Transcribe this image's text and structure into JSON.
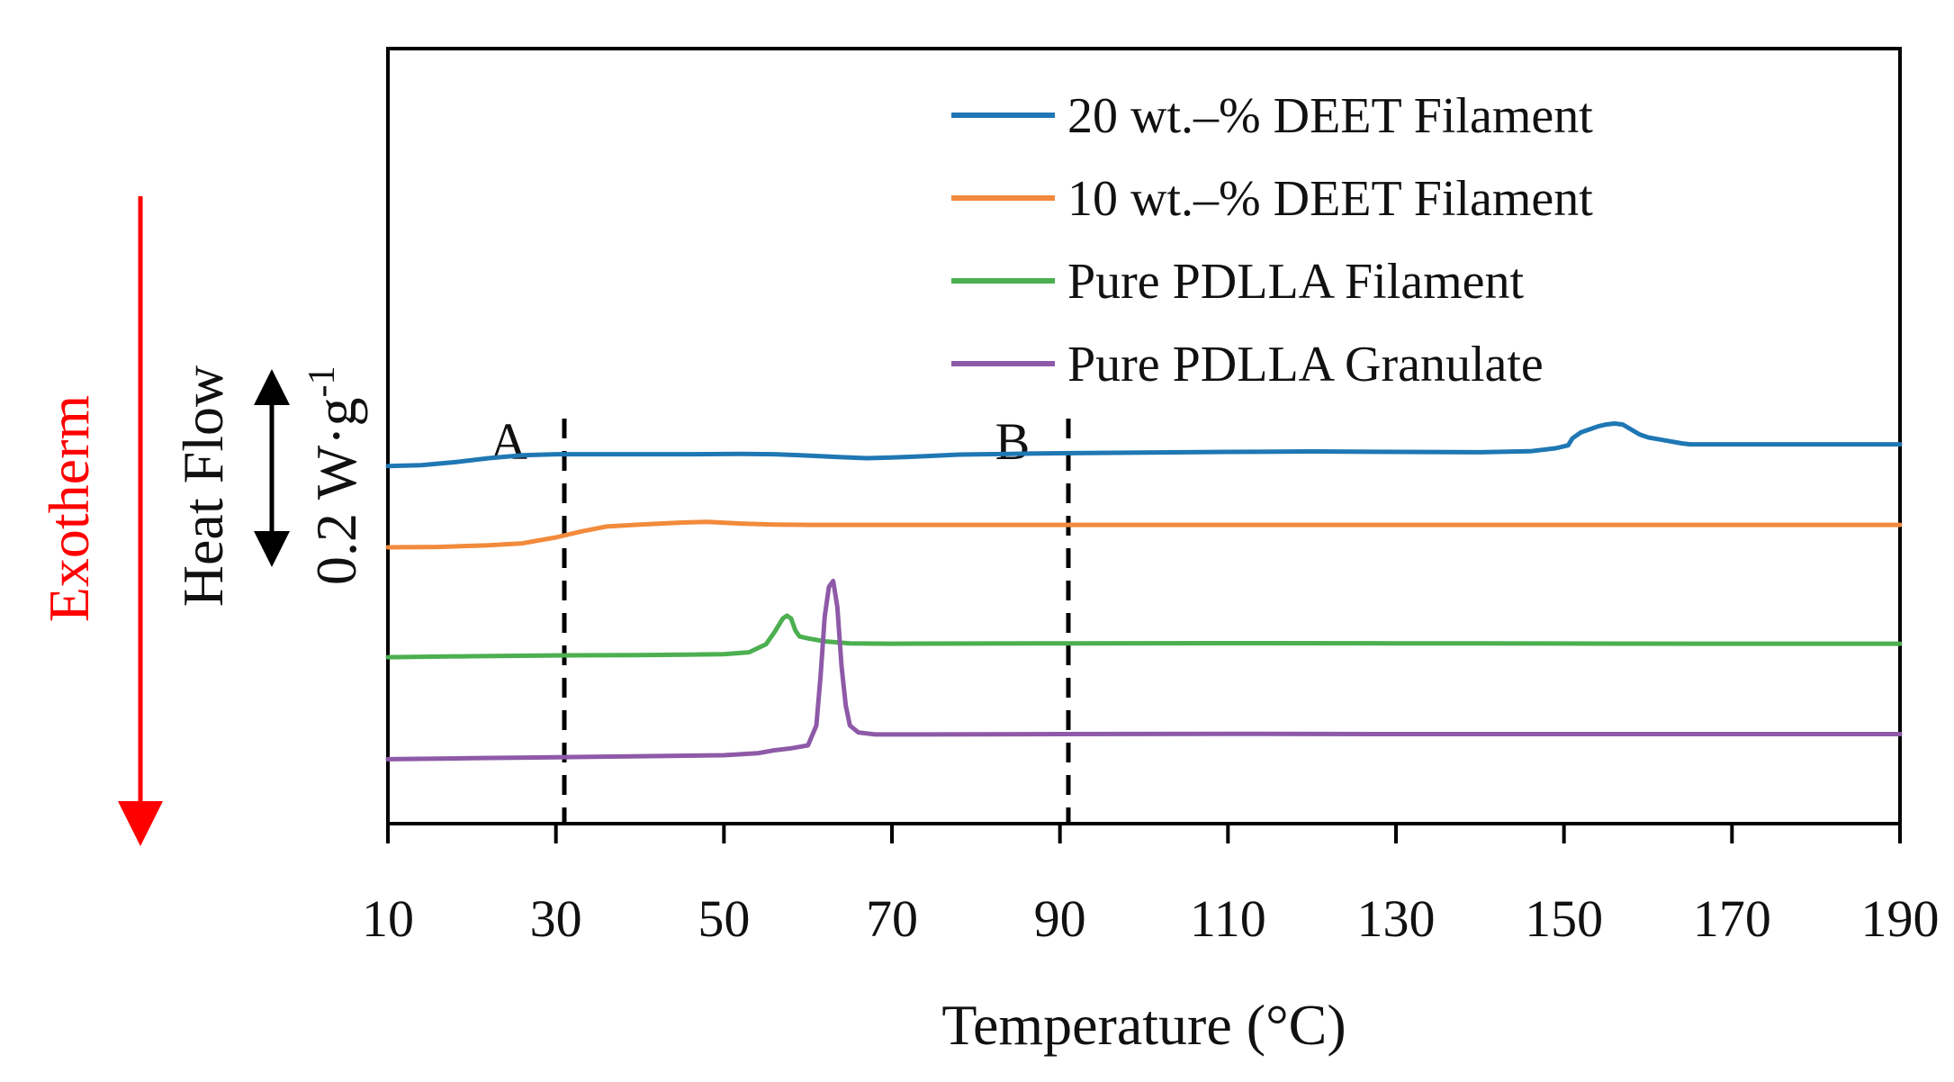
{
  "chart_data": {
    "type": "line",
    "xlabel": "Temperature (°C)",
    "ylabel": "Heat Flow",
    "scale_label": "0.2 W·g",
    "scale_label_sup": "-1",
    "exotherm_label": "Exotherm",
    "xlim": [
      10,
      190
    ],
    "x_ticks": [
      "10",
      "30",
      "50",
      "70",
      "90",
      "110",
      "130",
      "150",
      "170",
      "190"
    ],
    "y_ticks": [],
    "grid": false,
    "legend_position": "top-right",
    "annotations": [
      {
        "label": "A",
        "x": 31
      },
      {
        "label": "B",
        "x": 91
      }
    ],
    "series": [
      {
        "name": "20 wt.–% DEET Filament",
        "color": "#1f77b4",
        "x": [
          10,
          14,
          18,
          22,
          26,
          30,
          34,
          40,
          46,
          52,
          56,
          60,
          64,
          67,
          70,
          74,
          78,
          84,
          90,
          100,
          110,
          120,
          130,
          140,
          146,
          149,
          150.5,
          151,
          152,
          153,
          154,
          155,
          156,
          157,
          158,
          159,
          160,
          162,
          164,
          165,
          170,
          180,
          190
        ],
        "y": [
          0.26,
          0.265,
          0.28,
          0.3,
          0.315,
          0.32,
          0.32,
          0.32,
          0.32,
          0.322,
          0.32,
          0.313,
          0.305,
          0.3,
          0.303,
          0.31,
          0.318,
          0.322,
          0.325,
          0.328,
          0.332,
          0.334,
          0.332,
          0.33,
          0.335,
          0.35,
          0.365,
          0.4,
          0.43,
          0.445,
          0.46,
          0.47,
          0.475,
          0.47,
          0.445,
          0.42,
          0.405,
          0.39,
          0.375,
          0.37,
          0.37,
          0.37,
          0.37
        ],
        "style": "solid"
      },
      {
        "name": "10 wt.–% DEET Filament",
        "color": "#f28a3c",
        "x": [
          10,
          16,
          22,
          26,
          30,
          33,
          36,
          40,
          45,
          48,
          52,
          56,
          60,
          70,
          90,
          110,
          130,
          150,
          170,
          190
        ],
        "y": [
          -0.15,
          -0.148,
          -0.14,
          -0.13,
          -0.1,
          -0.07,
          -0.045,
          -0.035,
          -0.025,
          -0.022,
          -0.03,
          -0.035,
          -0.037,
          -0.037,
          -0.037,
          -0.037,
          -0.037,
          -0.037,
          -0.037,
          -0.037
        ],
        "style": "solid"
      },
      {
        "name": "Pure PDLLA Filament",
        "color": "#4caf50",
        "x": [
          10,
          20,
          30,
          40,
          50,
          53,
          55,
          56,
          57,
          57.5,
          58,
          58.5,
          59,
          60,
          62,
          65,
          70,
          90,
          110,
          130,
          150,
          170,
          190
        ],
        "y": [
          -0.705,
          -0.7,
          -0.696,
          -0.694,
          -0.69,
          -0.68,
          -0.64,
          -0.58,
          -0.51,
          -0.495,
          -0.51,
          -0.57,
          -0.6,
          -0.61,
          -0.625,
          -0.635,
          -0.637,
          -0.635,
          -0.634,
          -0.635,
          -0.636,
          -0.637,
          -0.637
        ],
        "style": "solid"
      },
      {
        "name": "Pure PDLLA Granulate",
        "color": "#8e5aa8",
        "x": [
          10,
          20,
          30,
          40,
          50,
          54,
          56,
          58,
          60,
          61,
          61.5,
          62,
          62.5,
          63,
          63.5,
          64,
          64.5,
          65,
          66,
          68,
          70,
          80,
          90,
          110,
          130,
          150,
          170,
          190
        ],
        "y": [
          -1.22,
          -1.215,
          -1.21,
          -1.205,
          -1.2,
          -1.19,
          -1.175,
          -1.165,
          -1.15,
          -1.05,
          -0.8,
          -0.5,
          -0.35,
          -0.32,
          -0.45,
          -0.75,
          -0.95,
          -1.05,
          -1.085,
          -1.095,
          -1.095,
          -1.094,
          -1.093,
          -1.092,
          -1.093,
          -1.093,
          -1.093,
          -1.093
        ],
        "style": "solid"
      }
    ]
  }
}
